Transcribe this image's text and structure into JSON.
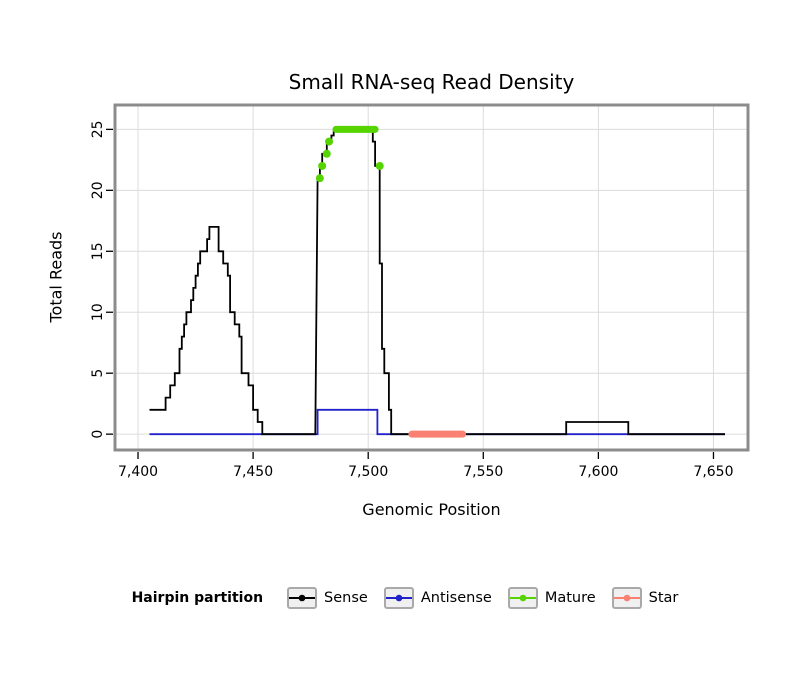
{
  "title": "Small RNA-seq Read Density",
  "xlabel": "Genomic Position",
  "ylabel": "Total Reads",
  "legend": {
    "label": "Hairpin partition",
    "items": [
      {
        "name": "Sense",
        "color": "#000000"
      },
      {
        "name": "Antisense",
        "color": "#2222cc"
      },
      {
        "name": "Mature",
        "color": "#55d400"
      },
      {
        "name": "Star",
        "color": "#fa8072"
      }
    ]
  },
  "chart_data": {
    "type": "line",
    "title": "Small RNA-seq Read Density",
    "xlabel": "Genomic Position",
    "ylabel": "Total Reads",
    "xlim": [
      7390,
      7665
    ],
    "ylim": [
      -1.3,
      27
    ],
    "x_ticks": [
      7400,
      7450,
      7500,
      7550,
      7600,
      7650
    ],
    "x_tick_labels": [
      "7,400",
      "7,450",
      "7,500",
      "7,550",
      "7,600",
      "7,650"
    ],
    "y_ticks": [
      0,
      5,
      10,
      15,
      20,
      25
    ],
    "grid": true,
    "grid_color": "#dcdcdc",
    "border_color": "#8c8c8c",
    "legend_position": "bottom",
    "series": [
      {
        "name": "Antisense",
        "color": "#2222cc",
        "line_width": 1.8,
        "points": [
          [
            7405,
            0
          ],
          [
            7478,
            0
          ],
          [
            7478,
            2
          ],
          [
            7504,
            2
          ],
          [
            7504,
            0
          ],
          [
            7655,
            0
          ]
        ]
      },
      {
        "name": "Sense",
        "color": "#000000",
        "line_width": 1.8,
        "points": [
          [
            7405,
            2
          ],
          [
            7412,
            2
          ],
          [
            7412,
            3
          ],
          [
            7414,
            3
          ],
          [
            7414,
            4
          ],
          [
            7416,
            4
          ],
          [
            7416,
            5
          ],
          [
            7418,
            5
          ],
          [
            7418,
            7
          ],
          [
            7419,
            7
          ],
          [
            7419,
            8
          ],
          [
            7420,
            8
          ],
          [
            7420,
            9
          ],
          [
            7421,
            9
          ],
          [
            7421,
            10
          ],
          [
            7423,
            10
          ],
          [
            7423,
            11
          ],
          [
            7424,
            11
          ],
          [
            7424,
            12
          ],
          [
            7425,
            12
          ],
          [
            7425,
            13
          ],
          [
            7426,
            13
          ],
          [
            7426,
            14
          ],
          [
            7427,
            14
          ],
          [
            7427,
            15
          ],
          [
            7430,
            15
          ],
          [
            7430,
            16
          ],
          [
            7431,
            16
          ],
          [
            7431,
            17
          ],
          [
            7435,
            17
          ],
          [
            7435,
            15
          ],
          [
            7437,
            15
          ],
          [
            7437,
            14
          ],
          [
            7439,
            14
          ],
          [
            7439,
            13
          ],
          [
            7440,
            13
          ],
          [
            7440,
            10
          ],
          [
            7442,
            10
          ],
          [
            7442,
            9
          ],
          [
            7444,
            9
          ],
          [
            7444,
            8
          ],
          [
            7445,
            8
          ],
          [
            7445,
            5
          ],
          [
            7448,
            5
          ],
          [
            7448,
            4
          ],
          [
            7450,
            4
          ],
          [
            7450,
            2
          ],
          [
            7452,
            2
          ],
          [
            7452,
            1
          ],
          [
            7454,
            1
          ],
          [
            7454,
            0
          ],
          [
            7477,
            0
          ],
          [
            7478,
            21
          ],
          [
            7479,
            21
          ],
          [
            7479,
            22
          ],
          [
            7480,
            22
          ],
          [
            7480,
            23
          ],
          [
            7482,
            23
          ],
          [
            7482,
            24
          ],
          [
            7484,
            24
          ],
          [
            7484,
            24.5
          ],
          [
            7485,
            24.5
          ],
          [
            7485,
            25
          ],
          [
            7502,
            25
          ],
          [
            7502,
            24
          ],
          [
            7503,
            24
          ],
          [
            7503,
            22
          ],
          [
            7505,
            22
          ],
          [
            7505,
            14
          ],
          [
            7506,
            14
          ],
          [
            7506,
            7
          ],
          [
            7507,
            7
          ],
          [
            7507,
            5
          ],
          [
            7509,
            5
          ],
          [
            7509,
            2
          ],
          [
            7510,
            2
          ],
          [
            7510,
            0
          ],
          [
            7586,
            0
          ],
          [
            7586,
            1
          ],
          [
            7613,
            1
          ],
          [
            7613,
            0
          ],
          [
            7655,
            0
          ]
        ]
      },
      {
        "name": "Mature",
        "color": "#55d400",
        "dot_radius": 4,
        "dots": [
          [
            7479,
            21
          ],
          [
            7480,
            22
          ],
          [
            7482,
            23
          ],
          [
            7483,
            24
          ],
          [
            7505,
            22
          ]
        ],
        "segment": {
          "x1": 7486,
          "x2": 7503,
          "y": 25,
          "width": 7
        }
      },
      {
        "name": "Star",
        "color": "#fa8072",
        "segment": {
          "x1": 7519,
          "x2": 7541,
          "y": 0,
          "width": 7
        }
      }
    ]
  }
}
